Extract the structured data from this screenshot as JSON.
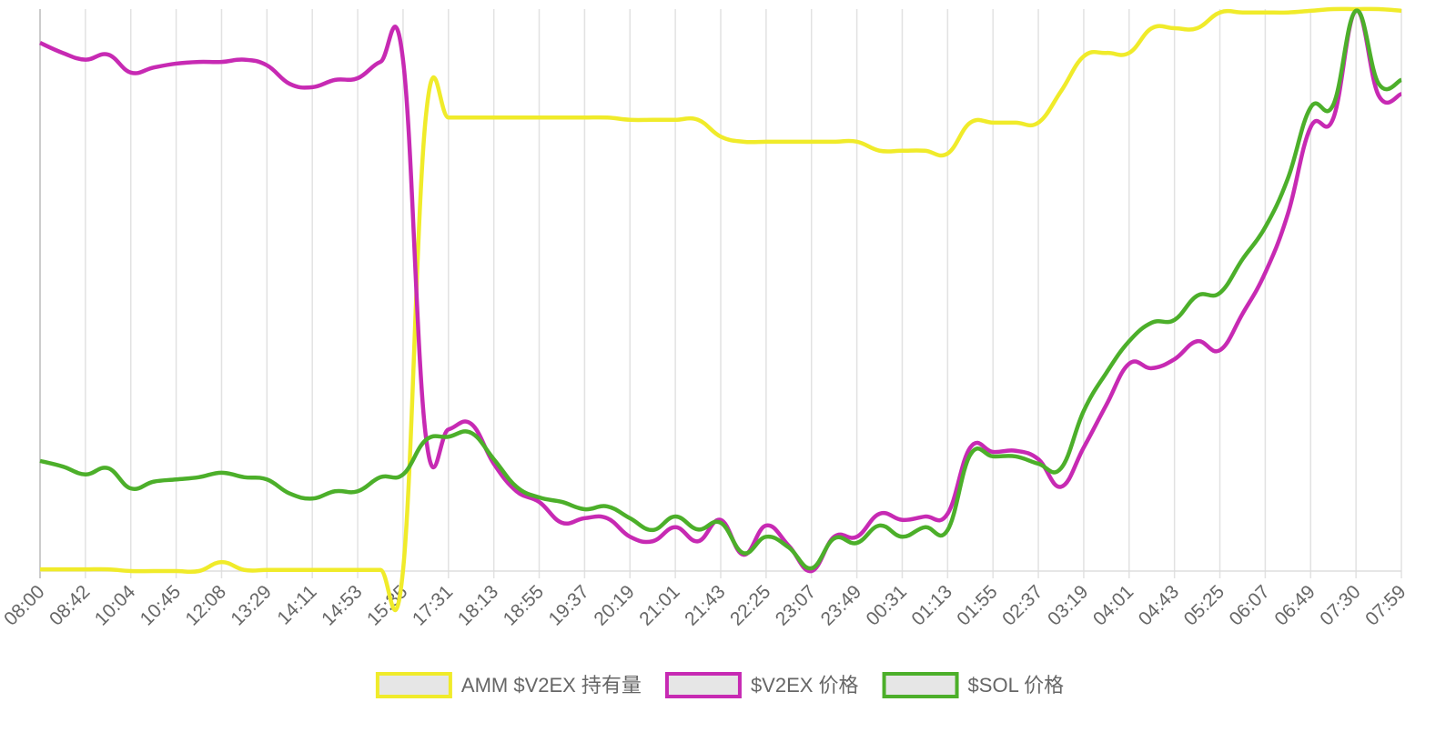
{
  "chart_data": {
    "type": "line",
    "categories": [
      "08:00",
      null,
      "08:42",
      null,
      "10:04",
      null,
      "10:45",
      null,
      "12:08",
      null,
      "13:29",
      null,
      "14:11",
      null,
      "14:53",
      null,
      "15:35",
      null,
      "17:31",
      null,
      "18:13",
      null,
      "18:55",
      null,
      "19:37",
      null,
      "20:19",
      null,
      "21:01",
      null,
      "21:43",
      null,
      "22:25",
      null,
      "23:07",
      null,
      "23:49",
      null,
      "00:31",
      null,
      "01:13",
      null,
      "01:55",
      null,
      "02:37",
      null,
      "03:19",
      null,
      "04:01",
      null,
      "04:43",
      null,
      "05:25",
      null,
      "06:07",
      null,
      "06:49",
      null,
      "07:30",
      null,
      "07:59"
    ],
    "ylim": [
      0,
      100
    ],
    "grid": true,
    "legend": "bottom",
    "series": [
      {
        "name": "AMM $V2EX 持有量",
        "color": "#f0eb2a",
        "values": [
          0.3,
          0.3,
          0.3,
          0.3,
          0,
          0,
          0,
          0,
          1.6,
          0.2,
          0.2,
          0.2,
          0.2,
          0.2,
          0.2,
          0.2,
          0.2,
          80.7,
          80.7,
          80.7,
          80.7,
          80.7,
          80.7,
          80.7,
          80.7,
          80.7,
          80.3,
          80.3,
          80.3,
          80.3,
          77.3,
          76.4,
          76.4,
          76.4,
          76.4,
          76.4,
          76.4,
          74.8,
          74.8,
          74.8,
          74.3,
          79.8,
          79.8,
          79.8,
          79.8,
          85.4,
          91.6,
          92.2,
          92.2,
          96.6,
          96.6,
          96.6,
          99.4,
          99.4,
          99.4,
          99.4,
          99.7,
          100,
          100,
          100,
          99.7
        ]
      },
      {
        "name": "$V2EX 价格",
        "color": "#c72ab3",
        "values": [
          94.0,
          92.2,
          91.0,
          91.9,
          88.7,
          89.6,
          90.3,
          90.6,
          90.6,
          91.0,
          90.0,
          86.7,
          86.1,
          87.4,
          87.7,
          90.6,
          90.9,
          24.1,
          25.2,
          26.2,
          19.1,
          14.2,
          12.3,
          8.6,
          9.4,
          9.4,
          6.1,
          5.3,
          7.8,
          5.3,
          9.1,
          2.9,
          8.1,
          4.5,
          0,
          6.1,
          6.1,
          10.2,
          9.1,
          9.7,
          10.2,
          22.0,
          21.2,
          21.4,
          19.9,
          15.0,
          22.0,
          29.6,
          36.9,
          36.1,
          37.7,
          40.9,
          39.3,
          45.8,
          53.1,
          63.6,
          79.0,
          80.6,
          99.7,
          84.6,
          84.9
        ]
      },
      {
        "name": "$SOL 价格",
        "color": "#4caf2a",
        "values": [
          19.6,
          18.6,
          17.2,
          18.3,
          14.7,
          15.9,
          16.3,
          16.7,
          17.5,
          16.7,
          16.3,
          13.8,
          12.9,
          14.2,
          14.2,
          16.7,
          17.2,
          23.3,
          23.9,
          24.6,
          19.9,
          15.0,
          13.1,
          12.3,
          11.0,
          11.5,
          9.4,
          7.3,
          9.7,
          7.4,
          8.6,
          3.2,
          6.1,
          4.2,
          0.5,
          5.8,
          5.0,
          8.1,
          6.1,
          7.8,
          7.3,
          20.7,
          20.4,
          20.4,
          19.1,
          18.3,
          28.5,
          35.3,
          40.9,
          44.2,
          44.7,
          49.0,
          49.5,
          55.5,
          61.2,
          69.9,
          82.5,
          83.0,
          99.7,
          86.7,
          87.4
        ]
      }
    ]
  }
}
